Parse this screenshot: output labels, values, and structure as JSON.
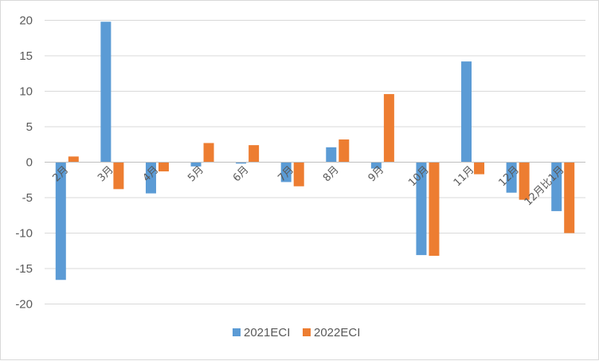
{
  "chart_data": {
    "type": "bar",
    "categories": [
      "2月",
      "3月",
      "4月",
      "5月",
      "6月",
      "7月",
      "8月",
      "9月",
      "10月",
      "11月",
      "12月",
      "12月比1月"
    ],
    "series": [
      {
        "name": "2021ECI",
        "color": "#5b9bd5",
        "values": [
          -16.6,
          19.8,
          -4.4,
          -0.6,
          -0.2,
          -2.8,
          2.1,
          -0.9,
          -13.1,
          14.2,
          -4.3,
          -6.9
        ]
      },
      {
        "name": "2022ECI",
        "color": "#ed7d31",
        "values": [
          0.8,
          -3.8,
          -1.3,
          2.7,
          2.4,
          -3.4,
          3.2,
          9.6,
          -13.2,
          -1.7,
          -5.3,
          -10.0
        ]
      }
    ],
    "ylim": [
      -20,
      20
    ],
    "yticks": [
      20,
      15,
      10,
      5,
      0,
      -5,
      -10,
      -15,
      -20
    ],
    "grid": true,
    "legend": "bottom",
    "title": "",
    "xlabel": "",
    "ylabel": ""
  }
}
